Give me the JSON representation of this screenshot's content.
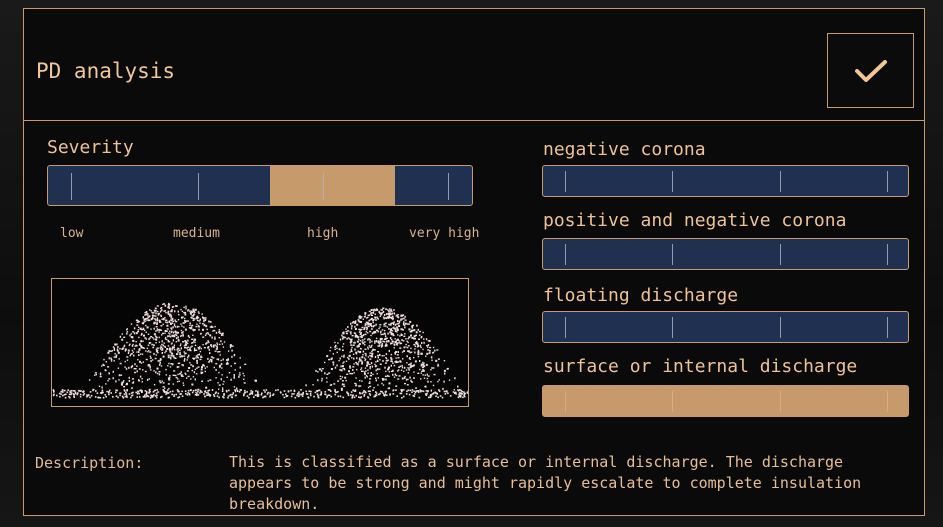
{
  "dialog": {
    "title": "PD analysis",
    "confirm_icon": "checkmark-icon"
  },
  "severity": {
    "label": "Severity",
    "levels": [
      "low",
      "medium",
      "high",
      "very high"
    ],
    "selected": "high"
  },
  "classifications": [
    {
      "label": "negative corona",
      "score": 0
    },
    {
      "label": "positive and negative corona",
      "score": 0
    },
    {
      "label": "floating discharge",
      "score": 0
    },
    {
      "label": "surface or internal discharge",
      "score": 1
    }
  ],
  "description": {
    "label": "Description:",
    "text": "This is classified as a surface or internal discharge. The discharge appears to be strong and might rapidly escalate to complete insulation breakdown."
  },
  "colors": {
    "accent": "#c99a6c",
    "bar_fill": "#c79a6c",
    "bar_bg": "#1f3050",
    "scatter_points": "#f2dede"
  }
}
